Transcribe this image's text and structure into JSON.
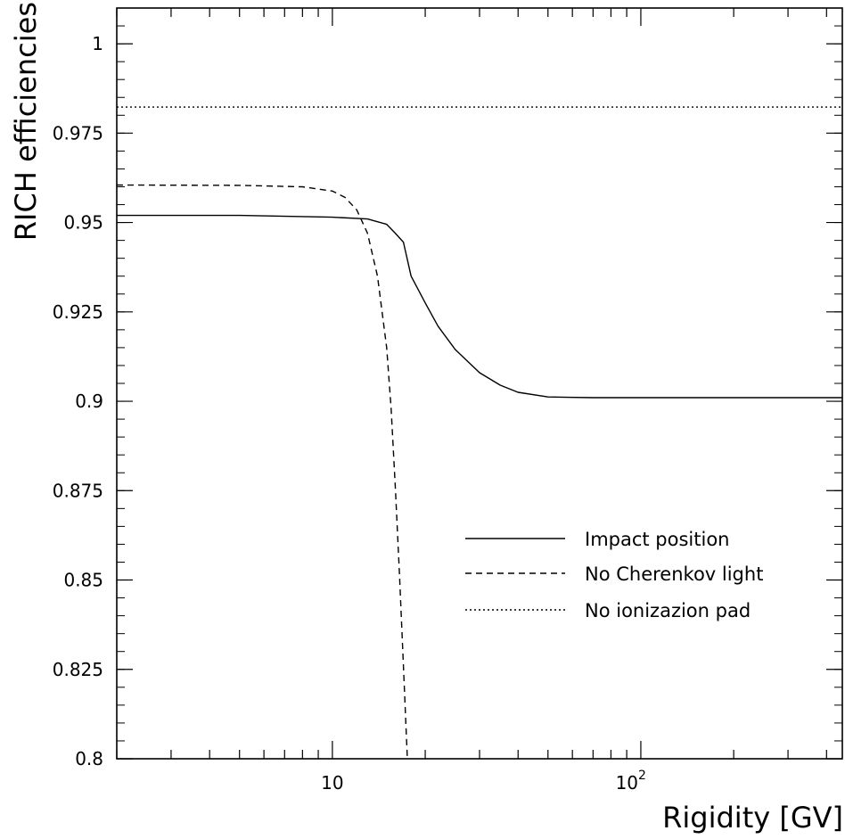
{
  "chart_data": {
    "type": "line",
    "title": "",
    "xlabel": "Rigidity [GV]",
    "ylabel": "RICH efficiencies",
    "xscale": "log",
    "xlim": [
      2,
      450
    ],
    "ylim": [
      0.8,
      1.01
    ],
    "grid": false,
    "legend_position": "bottom-right",
    "x_ticks": [
      {
        "value": 10,
        "base": "10",
        "exp": ""
      },
      {
        "value": 100,
        "base": "10",
        "exp": "2"
      }
    ],
    "y_ticks": [
      {
        "value": 0.8,
        "label": "0.8"
      },
      {
        "value": 0.825,
        "label": "0.825"
      },
      {
        "value": 0.85,
        "label": "0.85"
      },
      {
        "value": 0.875,
        "label": "0.875"
      },
      {
        "value": 0.9,
        "label": "0.9"
      },
      {
        "value": 0.925,
        "label": "0.925"
      },
      {
        "value": 0.95,
        "label": "0.95"
      },
      {
        "value": 0.975,
        "label": "0.975"
      },
      {
        "value": 1,
        "label": "1"
      }
    ],
    "series": [
      {
        "name": "Impact position",
        "style": "solid",
        "x": [
          2,
          5,
          10,
          13,
          15,
          16,
          17,
          18,
          20,
          22,
          25,
          30,
          35,
          40,
          50,
          70,
          100,
          200,
          450
        ],
        "y": [
          0.952,
          0.952,
          0.9515,
          0.951,
          0.9495,
          0.947,
          0.9445,
          0.935,
          0.9275,
          0.921,
          0.9145,
          0.908,
          0.9045,
          0.9025,
          0.9012,
          0.901,
          0.901,
          0.901,
          0.901
        ]
      },
      {
        "name": "No Cherenkov light",
        "style": "dashed",
        "x": [
          2,
          5,
          8,
          10,
          11,
          12,
          13,
          14,
          15,
          15.5,
          16,
          16.5,
          17,
          17.5
        ],
        "y": [
          0.9605,
          0.9604,
          0.96,
          0.9588,
          0.957,
          0.9535,
          0.947,
          0.935,
          0.915,
          0.898,
          0.876,
          0.852,
          0.826,
          0.8
        ]
      },
      {
        "name": "No ionizazion pad",
        "style": "dotted",
        "x": [
          2,
          450
        ],
        "y": [
          0.9823,
          0.9823
        ]
      }
    ]
  }
}
